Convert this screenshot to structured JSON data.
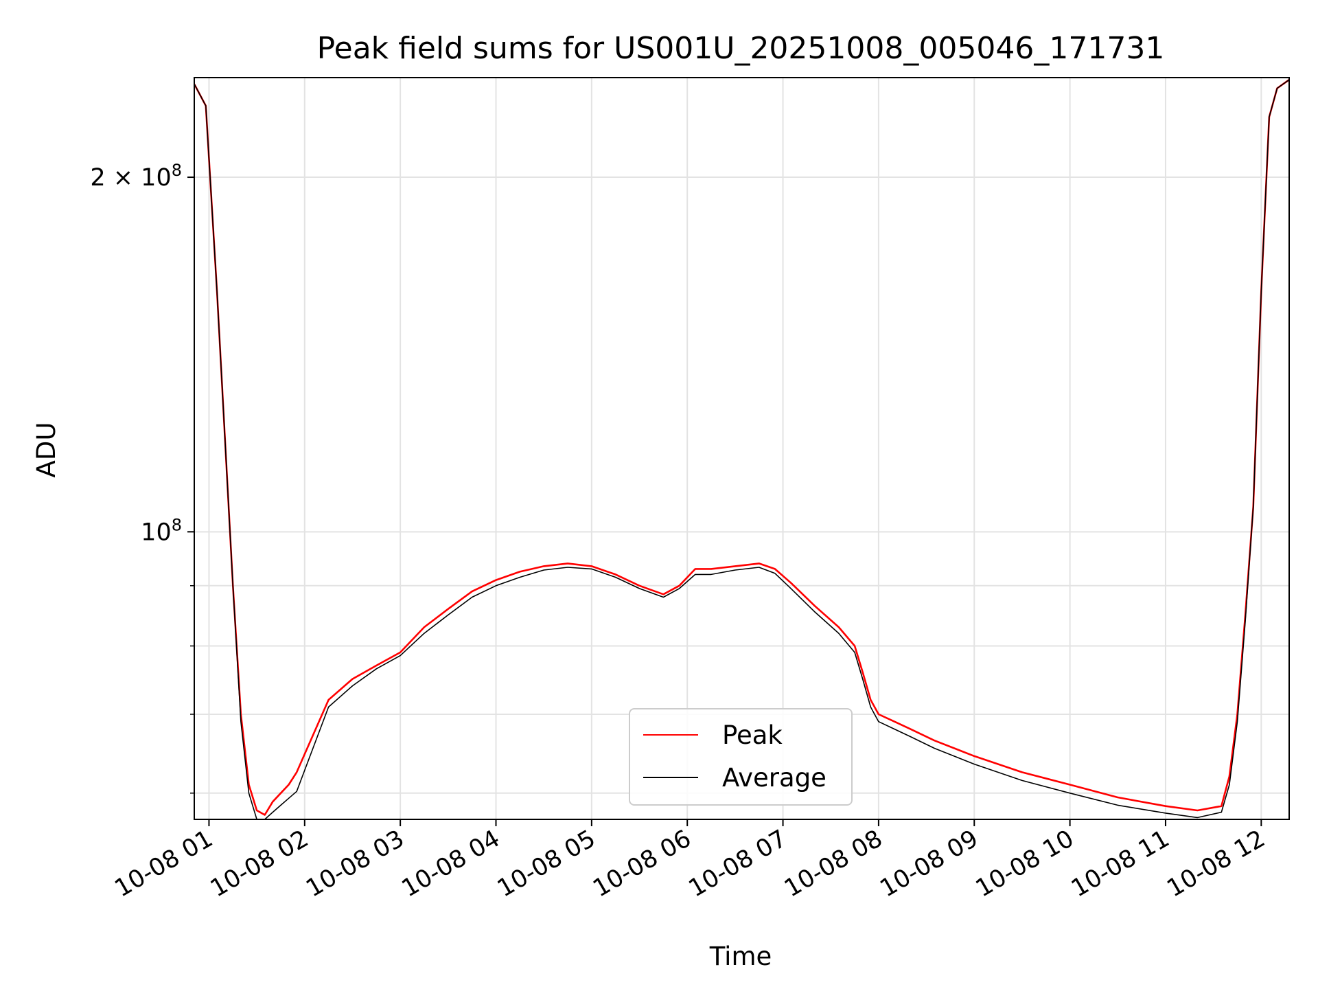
{
  "chart_data": {
    "type": "line",
    "title": "Peak field sums for US001U_20251008_005046_171731",
    "xlabel": "Time",
    "ylabel": "ADU",
    "yscale": "log",
    "xlim": [
      "2025-10-08 00:50:46",
      "2025-10-08 12:17:31"
    ],
    "ylim": [
      57000000,
      243000000
    ],
    "x_ticks": [
      "10-08 01",
      "10-08 02",
      "10-08 03",
      "10-08 04",
      "10-08 05",
      "10-08 06",
      "10-08 07",
      "10-08 08",
      "10-08 09",
      "10-08 10",
      "10-08 11",
      "10-08 12"
    ],
    "y_major_ticks": [
      {
        "value": 100000000,
        "label_base": "10",
        "label_exp": "8"
      },
      {
        "value": 200000000,
        "label_base": "2 × 10",
        "label_exp": "8"
      }
    ],
    "y_minor_ticks": [
      60000000,
      70000000,
      80000000,
      90000000
    ],
    "grid": true,
    "legend_position": "bottom-center",
    "x": [
      "2025-10-08 00:50:46",
      "2025-10-08 00:58",
      "2025-10-08 01:05",
      "2025-10-08 01:10",
      "2025-10-08 01:15",
      "2025-10-08 01:20",
      "2025-10-08 01:25",
      "2025-10-08 01:30",
      "2025-10-08 01:35",
      "2025-10-08 01:40",
      "2025-10-08 01:45",
      "2025-10-08 01:50",
      "2025-10-08 01:55",
      "2025-10-08 02:15",
      "2025-10-08 02:30",
      "2025-10-08 02:45",
      "2025-10-08 03:00",
      "2025-10-08 03:15",
      "2025-10-08 03:30",
      "2025-10-08 03:45",
      "2025-10-08 04:00",
      "2025-10-08 04:15",
      "2025-10-08 04:30",
      "2025-10-08 04:45",
      "2025-10-08 05:00",
      "2025-10-08 05:15",
      "2025-10-08 05:30",
      "2025-10-08 05:45",
      "2025-10-08 05:55",
      "2025-10-08 06:05",
      "2025-10-08 06:15",
      "2025-10-08 06:30",
      "2025-10-08 06:45",
      "2025-10-08 06:55",
      "2025-10-08 07:05",
      "2025-10-08 07:20",
      "2025-10-08 07:35",
      "2025-10-08 07:45",
      "2025-10-08 07:50",
      "2025-10-08 07:55",
      "2025-10-08 08:00",
      "2025-10-08 08:10",
      "2025-10-08 08:20",
      "2025-10-08 08:35",
      "2025-10-08 09:00",
      "2025-10-08 09:30",
      "2025-10-08 10:00",
      "2025-10-08 10:30",
      "2025-10-08 11:00",
      "2025-10-08 11:20",
      "2025-10-08 11:35",
      "2025-10-08 11:40",
      "2025-10-08 11:45",
      "2025-10-08 11:50",
      "2025-10-08 11:55",
      "2025-10-08 12:00",
      "2025-10-08 12:05",
      "2025-10-08 12:10",
      "2025-10-08 12:17:31"
    ],
    "series": [
      {
        "name": "Peak",
        "color": "#ff0000",
        "values": [
          240000000,
          230000000,
          160000000,
          120000000,
          90000000,
          70000000,
          61000000,
          58000000,
          57500000,
          59000000,
          60000000,
          61000000,
          62500000,
          72000000,
          75000000,
          77000000,
          79000000,
          83000000,
          86000000,
          89000000,
          91000000,
          92500000,
          93500000,
          94000000,
          93500000,
          92000000,
          90000000,
          88500000,
          90000000,
          93000000,
          93000000,
          93500000,
          94000000,
          93000000,
          90500000,
          86500000,
          83000000,
          80000000,
          76000000,
          72000000,
          70000000,
          69000000,
          68000000,
          66500000,
          64500000,
          62500000,
          61000000,
          59500000,
          58500000,
          58000000,
          58500000,
          62000000,
          70000000,
          85000000,
          105000000,
          160000000,
          225000000,
          238000000,
          242000000
        ]
      },
      {
        "name": "Average",
        "color": "#000000",
        "values": [
          240000000,
          230000000,
          160000000,
          120000000,
          90000000,
          69000000,
          60000000,
          57000000,
          57000000,
          57800000,
          58600000,
          59400000,
          60200000,
          71000000,
          74000000,
          76500000,
          78500000,
          82000000,
          85000000,
          88000000,
          90000000,
          91500000,
          92800000,
          93300000,
          93000000,
          91500000,
          89500000,
          88000000,
          89500000,
          92000000,
          92000000,
          92800000,
          93300000,
          92200000,
          89500000,
          85500000,
          82000000,
          79000000,
          75000000,
          71000000,
          69000000,
          68000000,
          67000000,
          65500000,
          63500000,
          61500000,
          60000000,
          58600000,
          57700000,
          57200000,
          57800000,
          61000000,
          69000000,
          84000000,
          105000000,
          160000000,
          225000000,
          238000000,
          242000000
        ]
      }
    ]
  }
}
